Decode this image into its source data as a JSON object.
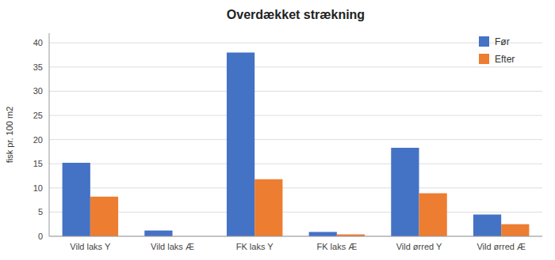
{
  "chart_data": {
    "type": "bar",
    "title": "Overdækket strækning",
    "ylabel": "fisk pr. 100 m2",
    "categories": [
      "Vild laks Y",
      "Vild laks Æ",
      "FK laks Y",
      "FK laks Æ",
      "Vild ørred Y",
      "Vild ørred Æ"
    ],
    "series": [
      {
        "name": "Før",
        "color": "#4472C4",
        "values": [
          15.2,
          1.2,
          38.0,
          0.9,
          18.3,
          4.5
        ]
      },
      {
        "name": "Efter",
        "color": "#ED7D31",
        "values": [
          8.2,
          0.0,
          11.8,
          0.4,
          8.9,
          2.5
        ]
      }
    ],
    "ylim": [
      0,
      42
    ],
    "yticks": [
      0,
      5,
      10,
      15,
      20,
      25,
      30,
      35,
      40
    ],
    "grid": true,
    "legend": "upper right"
  }
}
